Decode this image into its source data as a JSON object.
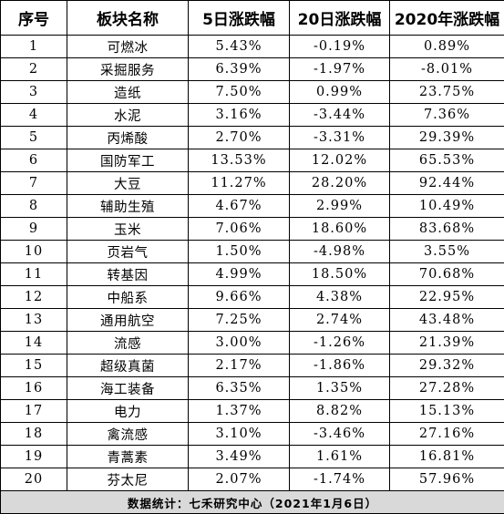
{
  "table": {
    "headers": [
      "序号",
      "板块名称",
      "5日涨跌幅",
      "20日涨跌幅",
      "2020年涨跌幅"
    ],
    "rows": [
      [
        "1",
        "可燃冰",
        "5.43%",
        "-0.19%",
        "0.89%"
      ],
      [
        "2",
        "采掘服务",
        "6.39%",
        "-1.97%",
        "-8.01%"
      ],
      [
        "3",
        "造纸",
        "7.50%",
        "0.99%",
        "23.75%"
      ],
      [
        "4",
        "水泥",
        "3.16%",
        "-3.44%",
        "7.36%"
      ],
      [
        "5",
        "丙烯酸",
        "2.70%",
        "-3.31%",
        "29.39%"
      ],
      [
        "6",
        "国防军工",
        "13.53%",
        "12.02%",
        "65.53%"
      ],
      [
        "7",
        "大豆",
        "11.27%",
        "28.20%",
        "92.44%"
      ],
      [
        "8",
        "辅助生殖",
        "4.67%",
        "2.99%",
        "10.49%"
      ],
      [
        "9",
        "玉米",
        "7.06%",
        "18.60%",
        "83.68%"
      ],
      [
        "10",
        "页岩气",
        "1.50%",
        "-4.98%",
        "3.55%"
      ],
      [
        "11",
        "转基因",
        "4.99%",
        "18.50%",
        "70.68%"
      ],
      [
        "12",
        "中船系",
        "9.66%",
        "4.38%",
        "22.95%"
      ],
      [
        "13",
        "通用航空",
        "7.25%",
        "2.74%",
        "43.48%"
      ],
      [
        "14",
        "流感",
        "3.00%",
        "-1.26%",
        "21.39%"
      ],
      [
        "15",
        "超级真菌",
        "2.17%",
        "-1.86%",
        "29.32%"
      ],
      [
        "16",
        "海工装备",
        "6.35%",
        "1.35%",
        "27.28%"
      ],
      [
        "17",
        "电力",
        "1.37%",
        "8.82%",
        "15.13%"
      ],
      [
        "18",
        "禽流感",
        "3.10%",
        "-3.46%",
        "27.16%"
      ],
      [
        "19",
        "青蒿素",
        "3.49%",
        "1.61%",
        "16.81%"
      ],
      [
        "20",
        "芬太尼",
        "2.07%",
        "-1.74%",
        "57.96%"
      ]
    ],
    "footer": "数据统计：七禾研究中心（2021年1月6日）"
  }
}
